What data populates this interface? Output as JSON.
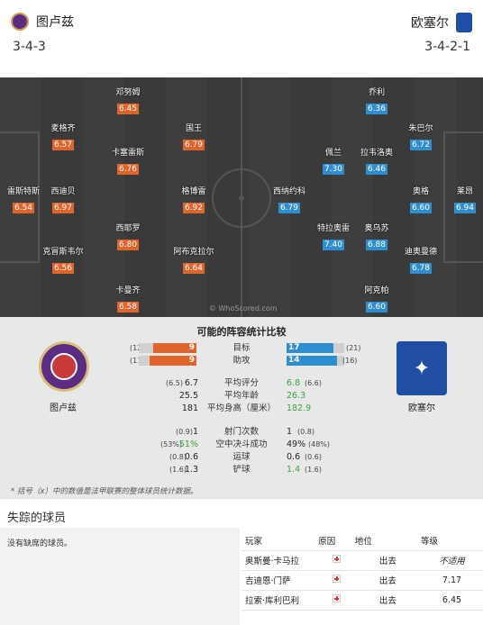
{
  "header": {
    "home_team": "图卢兹",
    "away_team": "欧塞尔",
    "home_formation": "3-4-3",
    "away_formation": "3-4-2-1"
  },
  "pitch": {
    "watermark": "© WhoScored.com",
    "home_players": [
      {
        "name": "雷斯特斯",
        "rating": "6.54"
      },
      {
        "name": "麦格齐",
        "rating": "6.57"
      },
      {
        "name": "西迪贝",
        "rating": "6.97"
      },
      {
        "name": "克冒斯韦尔",
        "rating": "6.56"
      },
      {
        "name": "邓努姆",
        "rating": "6.45"
      },
      {
        "name": "卡塞雷斯",
        "rating": "6.76"
      },
      {
        "name": "西耶罗",
        "rating": "6.80"
      },
      {
        "name": "卡曼齐",
        "rating": "6.58"
      },
      {
        "name": "国王",
        "rating": "6.79"
      },
      {
        "name": "格博雷",
        "rating": "6.92"
      },
      {
        "name": "阿布克拉尔",
        "rating": "6.64"
      }
    ],
    "away_players": [
      {
        "name": "莱昂",
        "rating": "6.94"
      },
      {
        "name": "乔利",
        "rating": "6.36"
      },
      {
        "name": "朱巴尔",
        "rating": "6.72"
      },
      {
        "name": "奥格",
        "rating": "6.60"
      },
      {
        "name": "迪奥曼德",
        "rating": "6.78"
      },
      {
        "name": "阿克帕",
        "rating": "6.60"
      },
      {
        "name": "佩兰",
        "rating": "7.30"
      },
      {
        "name": "拉韦洛奥",
        "rating": "6.46"
      },
      {
        "name": "西纳约科",
        "rating": "6.79"
      },
      {
        "name": "特拉奥雷",
        "rating": "7.40"
      },
      {
        "name": "奥乌苏",
        "rating": "6.88"
      }
    ]
  },
  "compare": {
    "title": "可能的阵容统计比较",
    "bars": [
      {
        "label": "目标",
        "home": "9",
        "home_season": "(12)",
        "away": "17",
        "away_season": "(21)",
        "home_frac": 0.75,
        "away_frac": 0.81
      },
      {
        "label": "助攻",
        "home": "9",
        "home_season": "(11)",
        "away": "14",
        "away_season": "(16)",
        "home_frac": 0.82,
        "away_frac": 0.88
      }
    ],
    "stats": [
      {
        "label": "平均评分",
        "home": "6.7",
        "home_season": "(6.5)",
        "away": "6.8",
        "away_season": "(6.6)"
      },
      {
        "label": "平均年龄",
        "home": "25.5",
        "home_season": "",
        "away": "26.3",
        "away_season": ""
      },
      {
        "label": "平均身高（厘米）",
        "home": "181",
        "home_season": "",
        "away": "182.9",
        "away_season": ""
      },
      {
        "label": "射门次数",
        "home": "1",
        "home_season": "(0.9)",
        "away": "1",
        "away_season": "(0.8)"
      },
      {
        "label": "空中决斗成功",
        "home": "51%",
        "home_season": "(53%)",
        "away": "49%",
        "away_season": "(48%)"
      },
      {
        "label": "运球",
        "home": "0.6",
        "home_season": "(0.8)",
        "away": "0.6",
        "away_season": "(0.6)"
      },
      {
        "label": "铲球",
        "home": "1.3",
        "home_season": "(1.6)",
        "away": "1.4",
        "away_season": "(1.6)"
      }
    ],
    "footnote": "* 括号（x）中的数值是法甲联赛的整体球员统计数据。"
  },
  "missing": {
    "title": "失踪的球员",
    "home_text": "没有缺席的球员。",
    "columns": [
      "玩家",
      "原因",
      "地位",
      "等级"
    ],
    "rows": [
      {
        "name": "奥斯曼·卡马拉",
        "status": "出去",
        "rating": "不适用"
      },
      {
        "name": "吉迪恩·门萨",
        "status": "出去",
        "rating": "7.17"
      },
      {
        "name": "拉索·库利巴利",
        "status": "出去",
        "rating": "6.45"
      }
    ]
  },
  "colors": {
    "home": "#e0652c",
    "away": "#2f8ed0",
    "pitch": "#3a3a3a"
  }
}
